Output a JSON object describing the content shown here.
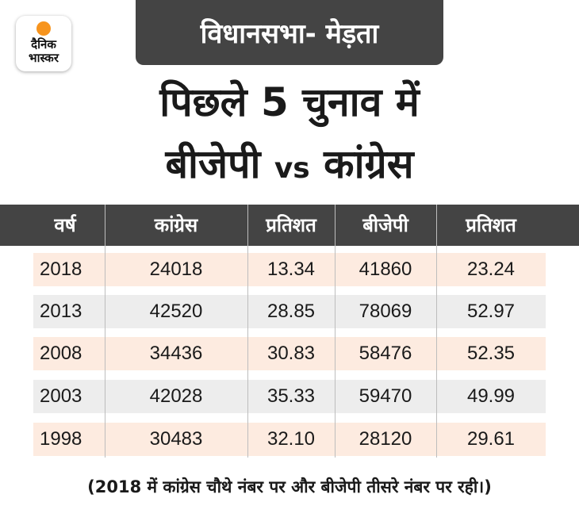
{
  "logo": {
    "line1": "दैनिक",
    "line2": "भास्कर"
  },
  "banner": "विधानसभा- मेड़ता",
  "headline": {
    "line1": "पिछले 5 चुनाव में",
    "line2_left": "बीजेपी",
    "line2_vs": "vs",
    "line2_right": "कांग्रेस"
  },
  "table": {
    "headers": [
      "वर्ष",
      "कांग्रेस",
      "प्रतिशत",
      "बीजेपी",
      "प्रतिशत"
    ],
    "rows": [
      [
        "2018",
        "24018",
        "13.34",
        "41860",
        "23.24"
      ],
      [
        "2013",
        "42520",
        "28.85",
        "78069",
        "52.97"
      ],
      [
        "2008",
        "34436",
        "30.83",
        "58476",
        "52.35"
      ],
      [
        "2003",
        "42028",
        "35.33",
        "59470",
        "49.99"
      ],
      [
        "1998",
        "30483",
        "32.10",
        "28120",
        "29.61"
      ]
    ]
  },
  "footnote": "(2018 में कांग्रेस चौथे नंबर पर और बीजेपी तीसरे नंबर पर रही।)",
  "colors": {
    "dark_band": "#444444",
    "row_peach": "#fdebe0",
    "row_gray": "#ededed",
    "logo_sun": "#f7941d"
  }
}
